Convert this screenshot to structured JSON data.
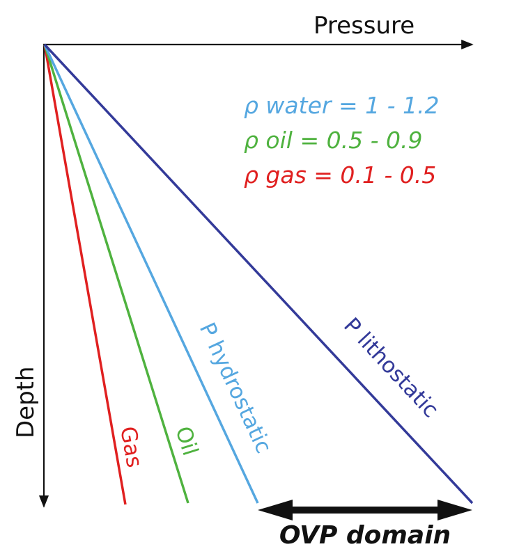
{
  "diagram": {
    "axes": {
      "x_label": "Pressure",
      "y_label": "Depth"
    },
    "lines": [
      {
        "key": "gas",
        "label": "Gas",
        "color": "#e02020"
      },
      {
        "key": "oil",
        "label": "Oil",
        "color": "#4fb23f"
      },
      {
        "key": "hydrostatic",
        "label": "P hydrostatic",
        "color": "#55a7e0"
      },
      {
        "key": "lithostatic",
        "label": "P lithostatic",
        "color": "#333a99"
      }
    ],
    "densities": [
      {
        "text": "ρ water = 1 - 1.2",
        "color": "#55a7e0"
      },
      {
        "text": "ρ oil = 0.5 - 0.9",
        "color": "#4fb23f"
      },
      {
        "text": "ρ gas = 0.1 - 0.5",
        "color": "#e02020"
      }
    ],
    "domain": {
      "label": "OVP domain"
    }
  }
}
